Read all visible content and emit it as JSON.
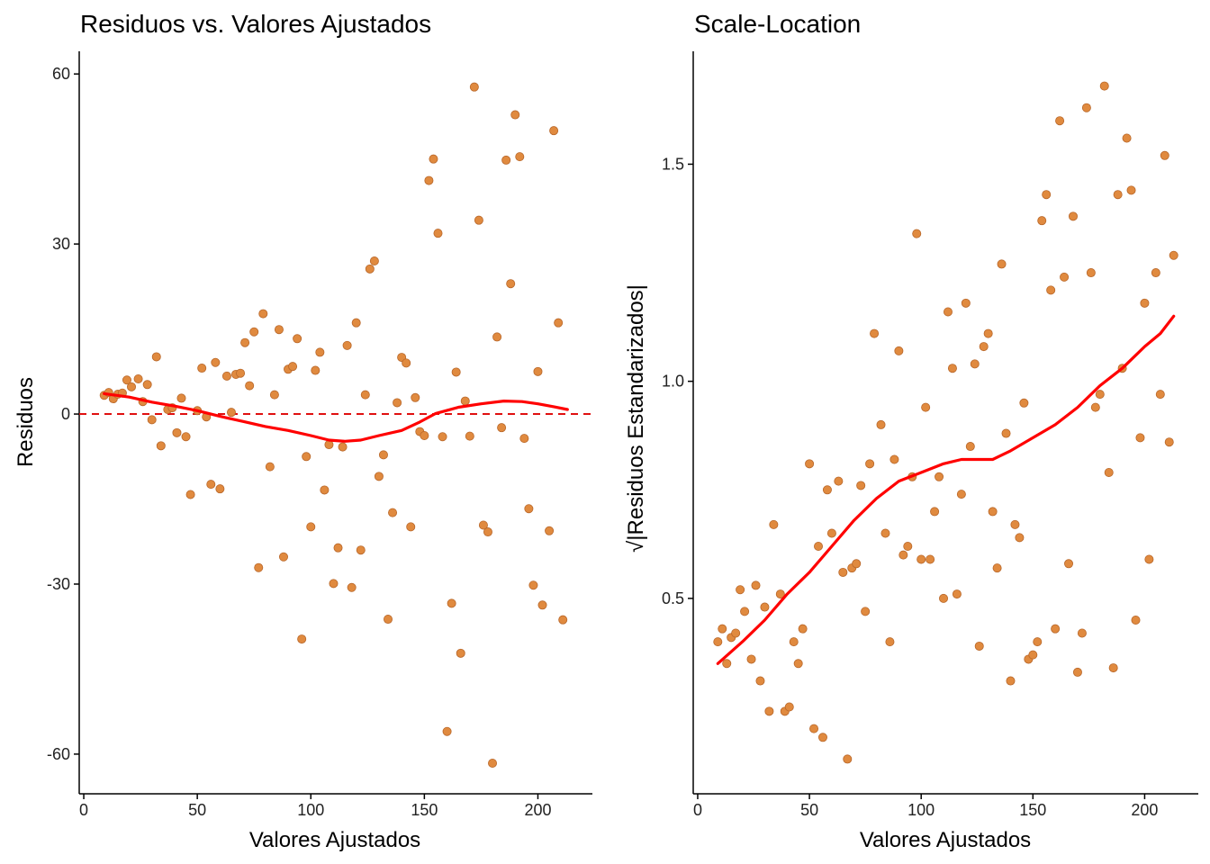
{
  "colors": {
    "point_fill": "#E08A3F",
    "point_stroke": "#B8672A",
    "smooth_line": "#FF0000",
    "reference_line": "#E01010",
    "axis": "#000000"
  },
  "chart_data": [
    {
      "type": "scatter",
      "title": "Residuos vs. Valores Ajustados",
      "xlabel": "Valores Ajustados",
      "ylabel": "Residuos",
      "xlim": [
        -2,
        224
      ],
      "ylim": [
        -67,
        64
      ],
      "xticks": [
        0,
        50,
        100,
        150,
        200
      ],
      "xtick_labels": [
        "0",
        "50",
        "100",
        "150",
        "200"
      ],
      "yticks": [
        -60,
        -30,
        0,
        30,
        60
      ],
      "ytick_labels": [
        "-60",
        "-30",
        "0",
        "30",
        "60"
      ],
      "grid": false,
      "reference_line": {
        "y": 0,
        "style": "dashed"
      },
      "points": [
        [
          9,
          3.3
        ],
        [
          11,
          3.8
        ],
        [
          13,
          2.7
        ],
        [
          15,
          3.5
        ],
        [
          17,
          3.7
        ],
        [
          19,
          6.0
        ],
        [
          21,
          4.8
        ],
        [
          24,
          6.2
        ],
        [
          26,
          2.2
        ],
        [
          28,
          5.2
        ],
        [
          30,
          -1.0
        ],
        [
          32,
          10.1
        ],
        [
          34,
          -5.6
        ],
        [
          37,
          0.8
        ],
        [
          39,
          1.1
        ],
        [
          41,
          -3.3
        ],
        [
          43,
          2.8
        ],
        [
          45,
          -4.0
        ],
        [
          47,
          -14.2
        ],
        [
          50,
          0.6
        ],
        [
          52,
          8.1
        ],
        [
          54,
          -0.5
        ],
        [
          56,
          -12.4
        ],
        [
          58,
          9.1
        ],
        [
          60,
          -13.2
        ],
        [
          63,
          6.7
        ],
        [
          65,
          0.3
        ],
        [
          67,
          7.0
        ],
        [
          69,
          7.2
        ],
        [
          71,
          12.6
        ],
        [
          73,
          5.0
        ],
        [
          75,
          14.5
        ],
        [
          77,
          -27.1
        ],
        [
          79,
          17.7
        ],
        [
          82,
          -9.3
        ],
        [
          84,
          3.4
        ],
        [
          86,
          14.9
        ],
        [
          88,
          -25.2
        ],
        [
          90,
          7.9
        ],
        [
          92,
          8.4
        ],
        [
          94,
          13.3
        ],
        [
          96,
          -39.7
        ],
        [
          98,
          -7.5
        ],
        [
          100,
          -19.9
        ],
        [
          102,
          7.7
        ],
        [
          104,
          10.9
        ],
        [
          106,
          -13.4
        ],
        [
          108,
          -5.4
        ],
        [
          110,
          -29.9
        ],
        [
          112,
          -23.6
        ],
        [
          114,
          -5.8
        ],
        [
          116,
          12.1
        ],
        [
          118,
          -30.6
        ],
        [
          120,
          16.1
        ],
        [
          122,
          -24.0
        ],
        [
          124,
          3.4
        ],
        [
          126,
          25.6
        ],
        [
          128,
          27.0
        ],
        [
          130,
          -11.0
        ],
        [
          132,
          -7.2
        ],
        [
          134,
          -36.2
        ],
        [
          136,
          -17.4
        ],
        [
          138,
          2.0
        ],
        [
          140,
          10.0
        ],
        [
          142,
          9.0
        ],
        [
          144,
          -19.9
        ],
        [
          146,
          2.9
        ],
        [
          148,
          -3.1
        ],
        [
          150,
          -3.8
        ],
        [
          152,
          41.2
        ],
        [
          154,
          45.0
        ],
        [
          156,
          31.9
        ],
        [
          158,
          -4.0
        ],
        [
          160,
          -56.0
        ],
        [
          162,
          -33.4
        ],
        [
          164,
          7.4
        ],
        [
          166,
          -42.2
        ],
        [
          168,
          2.3
        ],
        [
          170,
          -3.9
        ],
        [
          172,
          57.7
        ],
        [
          174,
          34.2
        ],
        [
          176,
          -19.6
        ],
        [
          178,
          -20.8
        ],
        [
          180,
          -61.6
        ],
        [
          182,
          13.6
        ],
        [
          184,
          -2.4
        ],
        [
          186,
          44.8
        ],
        [
          188,
          23.0
        ],
        [
          190,
          52.8
        ],
        [
          192,
          45.4
        ],
        [
          194,
          -4.3
        ],
        [
          196,
          -16.7
        ],
        [
          198,
          -30.2
        ],
        [
          200,
          7.5
        ],
        [
          202,
          -33.7
        ],
        [
          205,
          -20.6
        ],
        [
          207,
          50.0
        ],
        [
          209,
          16.1
        ],
        [
          211,
          -36.3
        ]
      ],
      "smooth": [
        [
          9,
          3.6
        ],
        [
          20,
          3.0
        ],
        [
          30,
          2.1
        ],
        [
          40,
          1.4
        ],
        [
          50,
          0.6
        ],
        [
          60,
          -0.4
        ],
        [
          70,
          -1.3
        ],
        [
          80,
          -2.2
        ],
        [
          90,
          -2.9
        ],
        [
          100,
          -3.8
        ],
        [
          108,
          -4.6
        ],
        [
          115,
          -4.8
        ],
        [
          122,
          -4.6
        ],
        [
          130,
          -3.8
        ],
        [
          140,
          -2.9
        ],
        [
          148,
          -1.4
        ],
        [
          155,
          0.1
        ],
        [
          165,
          1.2
        ],
        [
          175,
          1.8
        ],
        [
          185,
          2.3
        ],
        [
          193,
          2.2
        ],
        [
          200,
          1.8
        ],
        [
          207,
          1.3
        ],
        [
          213,
          0.8
        ]
      ]
    },
    {
      "type": "scatter",
      "title": "Scale-Location",
      "xlabel": "Valores Ajustados",
      "ylabel": "√|Residuos Estandarizados|",
      "xlim": [
        -2,
        224
      ],
      "ylim": [
        0.05,
        1.76
      ],
      "xticks": [
        0,
        50,
        100,
        150,
        200
      ],
      "xtick_labels": [
        "0",
        "50",
        "100",
        "150",
        "200"
      ],
      "yticks": [
        0.5,
        1.0,
        1.5
      ],
      "ytick_labels": [
        "0.5",
        "1.0",
        "1.5"
      ],
      "grid": false,
      "points": [
        [
          9,
          0.4
        ],
        [
          11,
          0.43
        ],
        [
          13,
          0.35
        ],
        [
          15,
          0.41
        ],
        [
          17,
          0.42
        ],
        [
          19,
          0.52
        ],
        [
          21,
          0.47
        ],
        [
          24,
          0.36
        ],
        [
          26,
          0.53
        ],
        [
          28,
          0.31
        ],
        [
          30,
          0.48
        ],
        [
          32,
          0.24
        ],
        [
          34,
          0.67
        ],
        [
          37,
          0.51
        ],
        [
          39,
          0.24
        ],
        [
          41,
          0.25
        ],
        [
          43,
          0.4
        ],
        [
          45,
          0.35
        ],
        [
          47,
          0.43
        ],
        [
          50,
          0.81
        ],
        [
          52,
          0.2
        ],
        [
          54,
          0.62
        ],
        [
          56,
          0.18
        ],
        [
          58,
          0.75
        ],
        [
          60,
          0.65
        ],
        [
          63,
          0.77
        ],
        [
          65,
          0.56
        ],
        [
          67,
          0.13
        ],
        [
          69,
          0.57
        ],
        [
          71,
          0.58
        ],
        [
          73,
          0.76
        ],
        [
          75,
          0.47
        ],
        [
          77,
          0.81
        ],
        [
          79,
          1.11
        ],
        [
          82,
          0.9
        ],
        [
          84,
          0.65
        ],
        [
          86,
          0.4
        ],
        [
          88,
          0.82
        ],
        [
          90,
          1.07
        ],
        [
          92,
          0.6
        ],
        [
          94,
          0.62
        ],
        [
          96,
          0.78
        ],
        [
          98,
          1.34
        ],
        [
          100,
          0.59
        ],
        [
          102,
          0.94
        ],
        [
          104,
          0.59
        ],
        [
          106,
          0.7
        ],
        [
          108,
          0.78
        ],
        [
          110,
          0.5
        ],
        [
          112,
          1.16
        ],
        [
          114,
          1.03
        ],
        [
          116,
          0.51
        ],
        [
          118,
          0.74
        ],
        [
          120,
          1.18
        ],
        [
          122,
          0.85
        ],
        [
          124,
          1.04
        ],
        [
          126,
          0.39
        ],
        [
          128,
          1.08
        ],
        [
          130,
          1.11
        ],
        [
          132,
          0.7
        ],
        [
          134,
          0.57
        ],
        [
          136,
          1.27
        ],
        [
          138,
          0.88
        ],
        [
          140,
          0.31
        ],
        [
          142,
          0.67
        ],
        [
          144,
          0.64
        ],
        [
          146,
          0.95
        ],
        [
          148,
          0.36
        ],
        [
          150,
          0.37
        ],
        [
          152,
          0.4
        ],
        [
          154,
          1.37
        ],
        [
          156,
          1.43
        ],
        [
          158,
          1.21
        ],
        [
          160,
          0.43
        ],
        [
          162,
          1.6
        ],
        [
          164,
          1.24
        ],
        [
          166,
          0.58
        ],
        [
          168,
          1.38
        ],
        [
          170,
          0.33
        ],
        [
          172,
          0.42
        ],
        [
          174,
          1.63
        ],
        [
          176,
          1.25
        ],
        [
          178,
          0.94
        ],
        [
          180,
          0.97
        ],
        [
          182,
          1.68
        ],
        [
          184,
          0.79
        ],
        [
          186,
          0.34
        ],
        [
          188,
          1.43
        ],
        [
          190,
          1.03
        ],
        [
          192,
          1.56
        ],
        [
          194,
          1.44
        ],
        [
          196,
          0.45
        ],
        [
          198,
          0.87
        ],
        [
          200,
          1.18
        ],
        [
          202,
          0.59
        ],
        [
          205,
          1.25
        ],
        [
          207,
          0.97
        ],
        [
          209,
          1.52
        ],
        [
          211,
          0.86
        ],
        [
          213,
          1.29
        ]
      ],
      "smooth": [
        [
          9,
          0.35
        ],
        [
          20,
          0.4
        ],
        [
          30,
          0.45
        ],
        [
          40,
          0.51
        ],
        [
          50,
          0.56
        ],
        [
          60,
          0.62
        ],
        [
          70,
          0.68
        ],
        [
          80,
          0.73
        ],
        [
          90,
          0.77
        ],
        [
          100,
          0.79
        ],
        [
          110,
          0.81
        ],
        [
          118,
          0.82
        ],
        [
          125,
          0.82
        ],
        [
          132,
          0.82
        ],
        [
          140,
          0.84
        ],
        [
          150,
          0.87
        ],
        [
          160,
          0.9
        ],
        [
          170,
          0.94
        ],
        [
          180,
          0.99
        ],
        [
          190,
          1.03
        ],
        [
          200,
          1.08
        ],
        [
          207,
          1.11
        ],
        [
          213,
          1.15
        ]
      ]
    }
  ]
}
